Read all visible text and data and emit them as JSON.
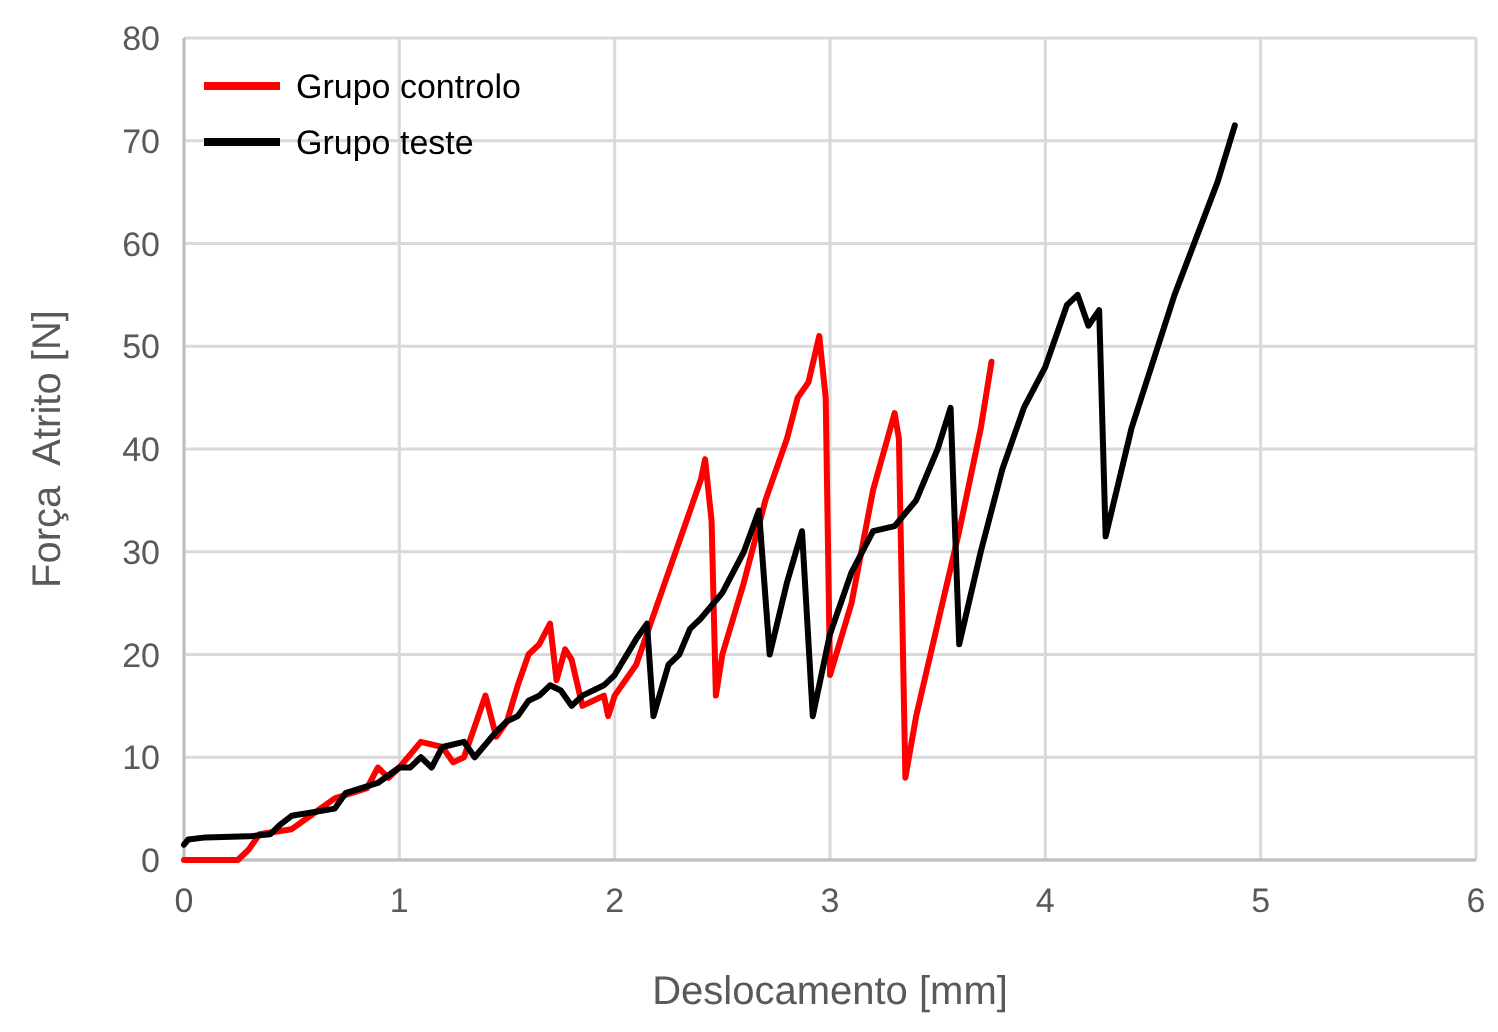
{
  "chart_data": {
    "type": "line",
    "xlabel": "Deslocamento [mm]",
    "ylabel": "Força  Atrito [N]",
    "xlim": [
      0,
      6
    ],
    "xticks": [
      0,
      1,
      2,
      3,
      4,
      5,
      6
    ],
    "ylim": [
      0,
      80
    ],
    "yticks": [
      0,
      10,
      20,
      30,
      40,
      50,
      60,
      70,
      80
    ],
    "grid": true,
    "legend": "top left",
    "marker": "none",
    "line_style": "solid",
    "series": [
      {
        "name": "Grupo controlo",
        "color": "#ff0000",
        "x": [
          0,
          0.25,
          0.3,
          0.35,
          0.5,
          0.6,
          0.7,
          0.85,
          0.9,
          0.95,
          1.0,
          1.1,
          1.2,
          1.25,
          1.3,
          1.35,
          1.4,
          1.45,
          1.5,
          1.55,
          1.6,
          1.65,
          1.7,
          1.73,
          1.77,
          1.8,
          1.85,
          1.9,
          1.95,
          1.97,
          2.0,
          2.1,
          2.2,
          2.3,
          2.35,
          2.4,
          2.42,
          2.45,
          2.47,
          2.5,
          2.6,
          2.7,
          2.8,
          2.85,
          2.9,
          2.95,
          2.98,
          3.0,
          3.1,
          3.2,
          3.28,
          3.3,
          3.32,
          3.35,
          3.4,
          3.5,
          3.6,
          3.7,
          3.75
        ],
        "values": [
          0,
          0,
          1,
          2.5,
          3,
          4.5,
          6,
          7,
          9,
          8,
          9,
          11.5,
          11,
          9.5,
          10,
          13,
          16,
          12,
          13.5,
          17,
          20,
          21,
          23,
          17.5,
          20.5,
          19.5,
          15,
          15.5,
          16,
          14,
          16,
          19,
          25,
          31,
          34,
          37,
          39,
          33,
          16,
          20,
          27,
          35,
          41,
          45,
          46.5,
          51,
          45,
          18,
          25,
          36,
          42,
          43.5,
          41,
          8,
          14,
          23,
          32,
          42,
          48.5
        ]
      },
      {
        "name": "Grupo teste",
        "color": "#000000",
        "x": [
          0,
          0.02,
          0.1,
          0.3,
          0.4,
          0.45,
          0.5,
          0.7,
          0.75,
          0.9,
          1.0,
          1.05,
          1.1,
          1.15,
          1.2,
          1.3,
          1.35,
          1.45,
          1.5,
          1.55,
          1.6,
          1.65,
          1.7,
          1.75,
          1.8,
          1.85,
          1.95,
          2.0,
          2.1,
          2.15,
          2.18,
          2.25,
          2.3,
          2.35,
          2.4,
          2.5,
          2.6,
          2.67,
          2.72,
          2.8,
          2.87,
          2.92,
          3.0,
          3.1,
          3.2,
          3.3,
          3.4,
          3.5,
          3.56,
          3.6,
          3.7,
          3.8,
          3.9,
          4.0,
          4.1,
          4.15,
          4.2,
          4.25,
          4.28,
          4.4,
          4.6,
          4.8,
          4.88
        ],
        "values": [
          1.5,
          2,
          2.2,
          2.3,
          2.5,
          3.5,
          4.3,
          5,
          6.5,
          7.5,
          9,
          9,
          10,
          9,
          11,
          11.5,
          10,
          12.5,
          13.5,
          14,
          15.5,
          16,
          17,
          16.5,
          15,
          16,
          17,
          18,
          21.5,
          23,
          14,
          19,
          20,
          22.5,
          23.5,
          26,
          30,
          34,
          20,
          27,
          32,
          14,
          22,
          28,
          32,
          32.5,
          35,
          40,
          44,
          21,
          30,
          38,
          44,
          48,
          54,
          55,
          52,
          53.5,
          31.5,
          42,
          55,
          66,
          71.5
        ]
      }
    ]
  }
}
